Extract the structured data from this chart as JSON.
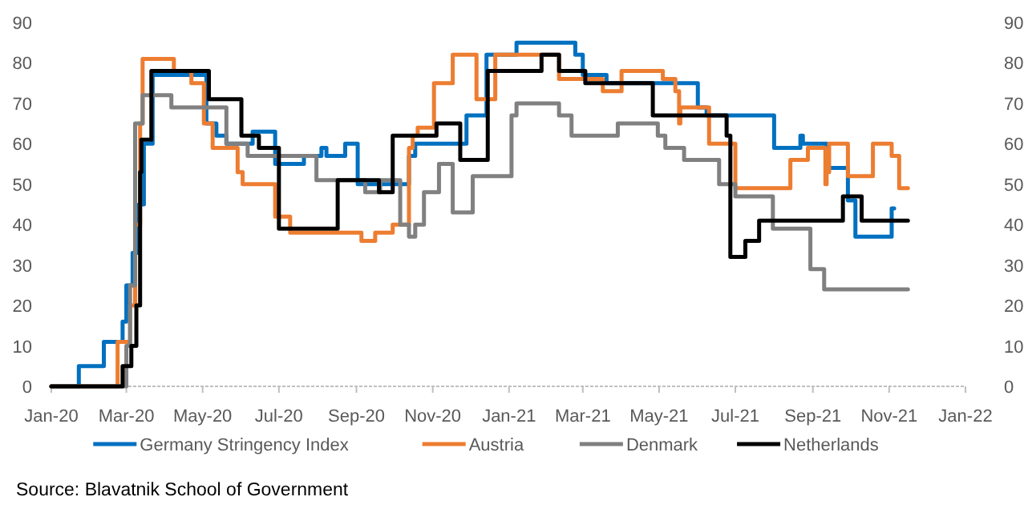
{
  "chart_data": {
    "type": "step",
    "annotations": [
      "Source:  Blavatnik School of Government"
    ],
    "xlim": [
      "2020-01-01",
      "2022-01-01"
    ],
    "xticks": [
      {
        "value": "2020-01-01",
        "label": "Jan-20"
      },
      {
        "value": "2020-03-01",
        "label": "Mar-20"
      },
      {
        "value": "2020-05-01",
        "label": "May-20"
      },
      {
        "value": "2020-07-01",
        "label": "Jul-20"
      },
      {
        "value": "2020-09-01",
        "label": "Sep-20"
      },
      {
        "value": "2020-11-01",
        "label": "Nov-20"
      },
      {
        "value": "2021-01-01",
        "label": "Jan-21"
      },
      {
        "value": "2021-03-01",
        "label": "Mar-21"
      },
      {
        "value": "2021-05-01",
        "label": "May-21"
      },
      {
        "value": "2021-07-01",
        "label": "Jul-21"
      },
      {
        "value": "2021-09-01",
        "label": "Sep-21"
      },
      {
        "value": "2021-11-01",
        "label": "Nov-21"
      },
      {
        "value": "2022-01-01",
        "label": "Jan-22"
      }
    ],
    "ylim": [
      0,
      90
    ],
    "yticks": [
      0,
      10,
      20,
      30,
      40,
      50,
      60,
      70,
      80,
      90
    ],
    "y2lim": [
      0,
      90
    ],
    "y2ticks": [
      0,
      10,
      20,
      30,
      40,
      50,
      60,
      70,
      80,
      90
    ],
    "legend": "bottom",
    "grid": false,
    "series": [
      {
        "name": "Germany Stringency Index",
        "color": "#0070c0",
        "x": [
          "2020-01-01",
          "2020-01-23",
          "2020-02-12",
          "2020-02-27",
          "2020-03-01",
          "2020-03-06",
          "2020-03-11",
          "2020-03-15",
          "2020-03-22",
          "2020-05-04",
          "2020-05-12",
          "2020-05-20",
          "2020-06-10",
          "2020-06-28",
          "2020-07-21",
          "2020-08-04",
          "2020-08-08",
          "2020-08-23",
          "2020-09-02",
          "2020-10-13",
          "2020-10-18",
          "2020-11-28",
          "2020-12-14",
          "2021-01-07",
          "2021-02-23",
          "2021-03-01",
          "2021-03-20",
          "2021-06-01",
          "2021-06-08",
          "2021-08-01",
          "2021-08-22",
          "2021-08-24",
          "2021-09-12",
          "2021-09-29",
          "2021-10-05",
          "2021-11-03",
          "2021-11-05"
        ],
        "values": [
          0,
          5,
          11,
          16,
          25,
          33,
          45,
          60,
          77,
          65,
          62,
          60,
          63,
          55,
          57,
          59,
          57,
          60,
          50,
          57,
          60,
          67,
          82,
          85,
          82,
          77,
          75,
          69,
          67,
          59,
          62,
          60,
          54,
          46,
          37,
          44,
          44
        ]
      },
      {
        "name": "Austria",
        "color": "#ed7d31",
        "x": [
          "2020-01-01",
          "2020-02-23",
          "2020-03-04",
          "2020-03-08",
          "2020-03-12",
          "2020-03-14",
          "2020-04-08",
          "2020-04-22",
          "2020-05-02",
          "2020-05-09",
          "2020-05-29",
          "2020-06-02",
          "2020-06-28",
          "2020-07-10",
          "2020-09-05",
          "2020-09-16",
          "2020-09-30",
          "2020-10-13",
          "2020-10-16",
          "2020-10-20",
          "2020-11-02",
          "2020-11-17",
          "2020-12-06",
          "2020-12-21",
          "2021-02-10",
          "2021-03-17",
          "2021-04-01",
          "2021-05-04",
          "2021-05-14",
          "2021-05-17",
          "2021-05-18",
          "2021-06-10",
          "2021-07-01",
          "2021-08-14",
          "2021-08-28",
          "2021-09-11",
          "2021-09-12",
          "2021-09-14",
          "2021-09-29",
          "2021-10-19",
          "2021-11-03",
          "2021-11-09",
          "2021-11-16"
        ],
        "values": [
          0,
          11,
          20,
          40,
          65,
          81,
          78,
          75,
          65,
          59,
          53,
          50,
          42,
          38,
          36,
          38,
          40,
          59,
          62,
          64,
          75,
          82,
          71,
          82,
          76,
          73,
          78,
          76,
          73,
          65,
          69,
          60,
          49,
          56,
          59,
          50,
          53,
          60,
          52,
          60,
          57,
          49,
          49
        ]
      },
      {
        "name": "Denmark",
        "color": "#808080",
        "x": [
          "2020-01-01",
          "2020-03-01",
          "2020-03-04",
          "2020-03-08",
          "2020-03-14",
          "2020-04-06",
          "2020-05-20",
          "2020-06-06",
          "2020-07-31",
          "2020-09-08",
          "2020-09-20",
          "2020-10-06",
          "2020-10-13",
          "2020-10-18",
          "2020-10-25",
          "2020-11-06",
          "2020-11-17",
          "2020-12-03",
          "2021-01-03",
          "2021-01-07",
          "2021-02-10",
          "2021-02-20",
          "2021-03-29",
          "2021-04-30",
          "2021-05-06",
          "2021-05-21",
          "2021-06-18",
          "2021-07-01",
          "2021-07-31",
          "2021-08-30",
          "2021-09-10",
          "2021-11-16"
        ],
        "values": [
          0,
          10,
          25,
          65,
          72,
          69,
          60,
          57,
          51,
          48,
          51,
          40,
          37,
          40,
          48,
          55,
          43,
          52,
          67,
          70,
          67,
          62,
          65,
          62,
          59,
          56,
          50,
          47,
          39,
          29,
          24,
          24
        ]
      },
      {
        "name": "Netherlands",
        "color": "#000000",
        "x": [
          "2020-01-01",
          "2020-02-27",
          "2020-03-05",
          "2020-03-09",
          "2020-03-12",
          "2020-03-13",
          "2020-03-21",
          "2020-05-06",
          "2020-06-01",
          "2020-06-15",
          "2020-07-01",
          "2020-08-17",
          "2020-09-19",
          "2020-09-30",
          "2020-11-04",
          "2020-11-23",
          "2020-12-15",
          "2021-01-27",
          "2021-02-10",
          "2021-03-03",
          "2021-04-26",
          "2021-06-24",
          "2021-06-27",
          "2021-07-09",
          "2021-07-20",
          "2021-09-25",
          "2021-10-10",
          "2021-11-16"
        ],
        "values": [
          0,
          5,
          10,
          20,
          53,
          61,
          78,
          71,
          62,
          59,
          39,
          51,
          48,
          62,
          65,
          56,
          78,
          82,
          78,
          75,
          67,
          62,
          32,
          36,
          41,
          47,
          41,
          41
        ]
      }
    ]
  }
}
